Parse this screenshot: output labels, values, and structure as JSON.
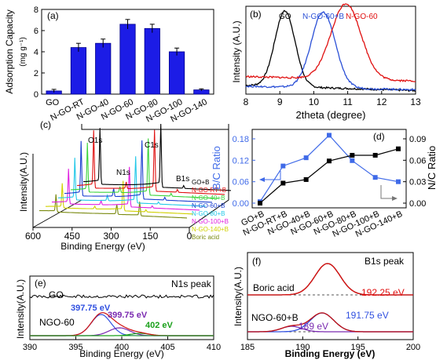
{
  "chart_data": [
    {
      "panel": "(a)",
      "type": "bar",
      "ylabel": "Adsorption Capacity",
      "yunit": "(mg g⁻¹)",
      "ylim": [
        0,
        8
      ],
      "yticks": [
        "0",
        "2",
        "4",
        "6",
        "8"
      ],
      "categories": [
        "GO",
        "N-GO-RT",
        "N-GO-40",
        "N-GO-60",
        "N-GO-80",
        "N-GO-100",
        "N-GO-140"
      ],
      "values": [
        0.3,
        4.4,
        4.8,
        6.6,
        6.2,
        4.0,
        0.4
      ],
      "errors": [
        0.15,
        0.4,
        0.4,
        0.45,
        0.4,
        0.35,
        0.1
      ],
      "colors": {
        "bar": "#1c1ce6",
        "edge": "#00008b"
      }
    },
    {
      "panel": "(b)",
      "type": "line",
      "xlabel": "2theta (degree)",
      "ylabel": "Intensity (A.U.)",
      "xlim": [
        8,
        13
      ],
      "xticks": [
        "8",
        "9",
        "10",
        "11",
        "12",
        "13"
      ],
      "series": [
        {
          "name": "GO",
          "color": "#000000",
          "center": 9.15,
          "width": 0.42,
          "height": 0.86,
          "baseline": [
            0.1,
            0.04
          ]
        },
        {
          "name": "N-GO-60+B",
          "color": "#2a4fd6",
          "center": 10.28,
          "width": 0.5,
          "height": 0.86,
          "baseline": [
            0.09,
            0.05
          ]
        },
        {
          "name": "N-GO-60",
          "color": "#e01010",
          "center": 10.95,
          "width": 0.62,
          "height": 0.86,
          "baseline": [
            0.2,
            0.15
          ]
        }
      ]
    },
    {
      "panel": "(c)",
      "type": "line",
      "xlabel": "Binding Energy (eV)",
      "ylabel": "Intensity(A.U.)",
      "xticks": [
        "600",
        "450",
        "300",
        "150",
        "0"
      ],
      "peak_labels": [
        "O1s",
        "N1s",
        "C1s",
        "B1s"
      ],
      "series": [
        {
          "name": "GO+B",
          "color": "#000000"
        },
        {
          "name": "N-GO-RT+B",
          "color": "#e01010"
        },
        {
          "name": "N-GO-40+B",
          "color": "#3cd43c"
        },
        {
          "name": "N-GO-60+B",
          "color": "#1a3fd0"
        },
        {
          "name": "N-GO-80+B",
          "color": "#22c8e8"
        },
        {
          "name": "N-GO-100+B",
          "color": "#e020e0"
        },
        {
          "name": "N-GO-140+B",
          "color": "#d0d000"
        },
        {
          "name": "Boric acid",
          "color": "#7a8a10"
        }
      ]
    },
    {
      "panel": "(d)",
      "type": "line",
      "ylabel_left": "B/C Ratio",
      "ylabel_right": "N/C Ratio",
      "ylim_left": [
        0,
        0.18
      ],
      "ylim_right": [
        0,
        0.09
      ],
      "yticks_left": [
        "0.00",
        "0.06",
        "0.12",
        "0.18"
      ],
      "yticks_right": [
        "0.00",
        "0.03",
        "0.06",
        "0.09"
      ],
      "categories": [
        "GO+B",
        "N-GO-RT+B",
        "N-GO-40+B",
        "N-GO-60+B",
        "N-GO-80+B",
        "N-GO-100+B",
        "N-GO-140+B"
      ],
      "series": [
        {
          "name": "B/C Ratio",
          "axis": "left",
          "color": "#3f6ae8",
          "values": [
            0.004,
            0.104,
            0.127,
            0.19,
            0.119,
            0.072,
            0.06
          ]
        },
        {
          "name": "N/C Ratio",
          "axis": "right",
          "color": "#000000",
          "values": [
            0.0,
            0.028,
            0.033,
            0.059,
            0.067,
            0.067,
            0.076
          ]
        }
      ]
    },
    {
      "panel": "(e)",
      "type": "line",
      "title": "N1s peak",
      "xlabel": "Binding Energy (eV)",
      "ylabel": "Intensity(A.U.)",
      "xlim": [
        390,
        410
      ],
      "xticks": [
        "390",
        "395",
        "400",
        "405",
        "410"
      ],
      "curve_labels": [
        "GO",
        "NGO-60"
      ],
      "peaks": [
        {
          "label": "397.75 eV",
          "center": 397.75,
          "color": "#3050e0"
        },
        {
          "label": "399.75 eV",
          "center": 399.75,
          "color": "#7a2ab0"
        },
        {
          "label": "402 eV",
          "center": 402,
          "color": "#1aa01a"
        }
      ]
    },
    {
      "panel": "(f)",
      "type": "line",
      "title": "B1s peak",
      "xlabel": "Binding Energy (eV)",
      "ylabel": "Intensity(A.U.)",
      "xlim": [
        185,
        200
      ],
      "xticks": [
        "185",
        "190",
        "195",
        "200"
      ],
      "curve_labels": [
        "Boric acid",
        "NGO-60+B"
      ],
      "peaks": [
        {
          "label": "192.25 eV",
          "center": 192.25,
          "color": "#e01010"
        },
        {
          "label": "191.75 eV",
          "center": 191.75,
          "color": "#3050e0"
        },
        {
          "label": "189 eV",
          "center": 189,
          "color": "#7a2ab0"
        }
      ]
    }
  ]
}
